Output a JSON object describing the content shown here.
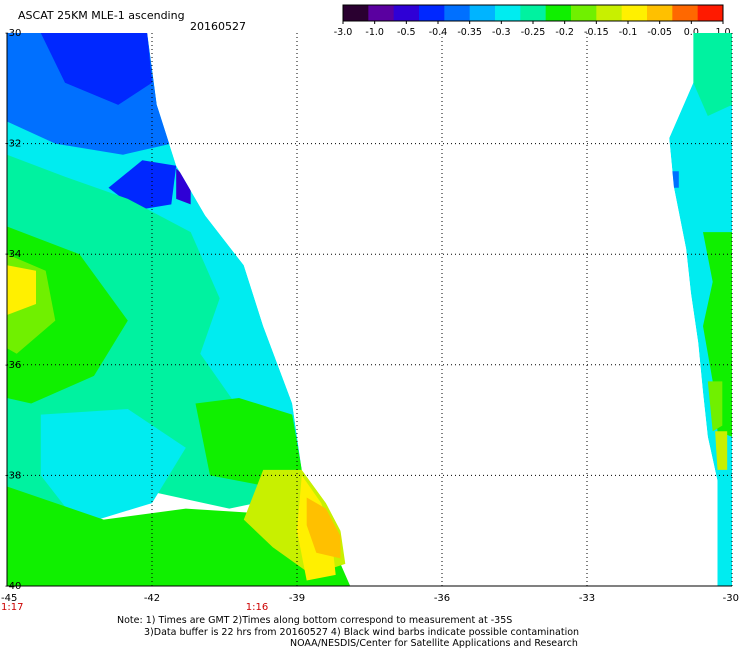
{
  "header": {
    "title": "ASCAT 25KM MLE-1 ascending",
    "date": "20160527"
  },
  "colorbar": {
    "labels": [
      "-3.0",
      "-1.0",
      "-0.5",
      "-0.4",
      "-0.35",
      "-0.3",
      "-0.25",
      "-0.2",
      "-0.15",
      "-0.1",
      "-0.05",
      "0.0",
      "1.0"
    ],
    "colors": [
      "#2a0030",
      "#5a00a0",
      "#2f00d6",
      "#0028ff",
      "#0070ff",
      "#00b4ff",
      "#00ecf0",
      "#00f2a0",
      "#10f000",
      "#70f000",
      "#c8f000",
      "#fff000",
      "#ffc000",
      "#ff6800",
      "#ff1a00"
    ]
  },
  "axes": {
    "lon_labels": [
      "-45",
      "-42",
      "-39",
      "-36",
      "-33",
      "-30"
    ],
    "lat_labels": [
      "-30",
      "-32",
      "-34",
      "-36",
      "-38",
      "-40"
    ],
    "time_labels": [
      {
        "text": "1:17",
        "at": "-45"
      },
      {
        "text": "1:16",
        "at": "-39"
      }
    ],
    "grid": true
  },
  "notes": {
    "line1": "Note: 1) Times are GMT 2)Times along bottom correspond to measurement at -35S",
    "line2": "3)Data buffer is 22 hrs from 20160527 4) Black wind barbs indicate possible contamination",
    "line3": "NOAA/NESDIS/Center for Satellite Applications and Research"
  },
  "map_data": {
    "lon_range": [
      -45,
      -30
    ],
    "lat_range": [
      -30,
      -40
    ],
    "swaths": [
      {
        "name": "west",
        "edge": [
          [
            -45.0,
            -30.0
          ],
          [
            -42.1,
            -30.0
          ],
          [
            -41.9,
            -31.3
          ],
          [
            -41.5,
            -32.4
          ],
          [
            -40.9,
            -33.3
          ],
          [
            -40.1,
            -34.2
          ],
          [
            -39.7,
            -35.3
          ],
          [
            -39.1,
            -36.7
          ],
          [
            -38.9,
            -37.9
          ],
          [
            -38.4,
            -38.5
          ],
          [
            -38.1,
            -39.0
          ],
          [
            -37.9,
            -39.5
          ],
          [
            -37.9,
            -40.0
          ],
          [
            -45.0,
            -40.0
          ]
        ],
        "regions": [
          {
            "color": "#00ecf0",
            "poly": [
              [
                -45,
                -30
              ],
              [
                -42.1,
                -30
              ],
              [
                -41.9,
                -31.3
              ],
              [
                -41.5,
                -32.4
              ],
              [
                -40.9,
                -33.3
              ],
              [
                -40.1,
                -34.2
              ],
              [
                -39.7,
                -35.3
              ],
              [
                -39.1,
                -36.7
              ],
              [
                -38.9,
                -37.9
              ],
              [
                -45,
                -37.9
              ]
            ]
          },
          {
            "color": "#0070ff",
            "poly": [
              [
                -45,
                -30
              ],
              [
                -42.1,
                -30
              ],
              [
                -41.9,
                -31.3
              ],
              [
                -41.6,
                -32.0
              ],
              [
                -42.6,
                -32.2
              ],
              [
                -44.0,
                -32.0
              ],
              [
                -45,
                -31.6
              ]
            ]
          },
          {
            "color": "#0028ff",
            "poly": [
              [
                -44.3,
                -30
              ],
              [
                -42.1,
                -30
              ],
              [
                -42.0,
                -30.9
              ],
              [
                -42.7,
                -31.3
              ],
              [
                -43.8,
                -30.9
              ]
            ]
          },
          {
            "color": "#0028ff",
            "poly": [
              [
                -42.2,
                -32.3
              ],
              [
                -41.5,
                -32.4
              ],
              [
                -41.6,
                -33.1
              ],
              [
                -42.3,
                -33.2
              ],
              [
                -42.9,
                -32.8
              ]
            ]
          },
          {
            "color": "#2f00d6",
            "poly": [
              [
                -41.5,
                -32.45
              ],
              [
                -41.2,
                -32.7
              ],
              [
                -41.2,
                -33.1
              ],
              [
                -41.5,
                -33.0
              ]
            ]
          },
          {
            "color": "#00f2a0",
            "poly": [
              [
                -45,
                -32.2
              ],
              [
                -43.8,
                -32.6
              ],
              [
                -42.5,
                -33.0
              ],
              [
                -41.2,
                -33.6
              ],
              [
                -40.6,
                -34.8
              ],
              [
                -41.0,
                -35.8
              ],
              [
                -40.2,
                -36.8
              ],
              [
                -39.5,
                -37.6
              ],
              [
                -39.3,
                -38.4
              ],
              [
                -40.4,
                -38.6
              ],
              [
                -42.5,
                -38.2
              ],
              [
                -44.0,
                -38.7
              ],
              [
                -45,
                -38.4
              ]
            ]
          },
          {
            "color": "#10f000",
            "poly": [
              [
                -45,
                -33.5
              ],
              [
                -43.5,
                -34.0
              ],
              [
                -42.5,
                -35.2
              ],
              [
                -43.2,
                -36.2
              ],
              [
                -44.5,
                -36.7
              ],
              [
                -45,
                -36.6
              ]
            ]
          },
          {
            "color": "#70f000",
            "poly": [
              [
                -45,
                -34.0
              ],
              [
                -44.2,
                -34.3
              ],
              [
                -44.0,
                -35.2
              ],
              [
                -44.8,
                -35.8
              ],
              [
                -45,
                -35.7
              ]
            ]
          },
          {
            "color": "#fff000",
            "poly": [
              [
                -45,
                -34.2
              ],
              [
                -44.4,
                -34.3
              ],
              [
                -44.4,
                -34.9
              ],
              [
                -45,
                -35.1
              ]
            ]
          },
          {
            "color": "#10f000",
            "poly": [
              [
                -41.1,
                -36.7
              ],
              [
                -40.2,
                -36.6
              ],
              [
                -39.1,
                -36.9
              ],
              [
                -38.9,
                -37.9
              ],
              [
                -39.6,
                -38.2
              ],
              [
                -40.8,
                -38.0
              ]
            ]
          },
          {
            "color": "#00ecf0",
            "poly": [
              [
                -44.3,
                -36.9
              ],
              [
                -42.5,
                -36.8
              ],
              [
                -41.3,
                -37.5
              ],
              [
                -42.0,
                -38.5
              ],
              [
                -43.5,
                -38.9
              ],
              [
                -44.3,
                -38.0
              ]
            ]
          },
          {
            "color": "#10f000",
            "poly": [
              [
                -45,
                -38.2
              ],
              [
                -43.0,
                -38.8
              ],
              [
                -41.3,
                -38.6
              ],
              [
                -39.5,
                -38.7
              ],
              [
                -38.6,
                -39.0
              ],
              [
                -38.1,
                -39.6
              ],
              [
                -37.9,
                -40
              ],
              [
                -45,
                -40
              ]
            ]
          },
          {
            "color": "#c8f000",
            "poly": [
              [
                -39.7,
                -37.9
              ],
              [
                -38.9,
                -37.9
              ],
              [
                -38.4,
                -38.5
              ],
              [
                -38.1,
                -39.0
              ],
              [
                -38.0,
                -39.6
              ],
              [
                -38.7,
                -39.8
              ],
              [
                -39.5,
                -39.3
              ],
              [
                -40.1,
                -38.8
              ]
            ]
          },
          {
            "color": "#fff000",
            "poly": [
              [
                -38.9,
                -38.0
              ],
              [
                -38.5,
                -38.5
              ],
              [
                -38.3,
                -39.0
              ],
              [
                -38.2,
                -39.8
              ],
              [
                -38.8,
                -39.9
              ],
              [
                -39.0,
                -39.0
              ]
            ]
          },
          {
            "color": "#ffc000",
            "poly": [
              [
                -38.8,
                -38.4
              ],
              [
                -38.4,
                -38.6
              ],
              [
                -38.1,
                -39.1
              ],
              [
                -38.1,
                -39.5
              ],
              [
                -38.6,
                -39.4
              ],
              [
                -38.8,
                -38.9
              ]
            ]
          }
        ]
      },
      {
        "name": "east",
        "edge": [
          [
            -30.8,
            -30.0
          ],
          [
            -30.0,
            -30.0
          ],
          [
            -30.0,
            -40.0
          ],
          [
            -30.3,
            -40.0
          ],
          [
            -30.3,
            -38.1
          ],
          [
            -30.5,
            -37.3
          ],
          [
            -30.6,
            -36.5
          ],
          [
            -30.7,
            -35.6
          ],
          [
            -30.85,
            -34.7
          ],
          [
            -30.95,
            -33.9
          ],
          [
            -31.2,
            -32.8
          ],
          [
            -31.3,
            -31.9
          ],
          [
            -30.8,
            -30.9
          ]
        ],
        "regions": [
          {
            "color": "#00ecf0",
            "poly": [
              [
                -30.8,
                -30
              ],
              [
                -30,
                -30
              ],
              [
                -30,
                -40
              ],
              [
                -30.3,
                -40
              ],
              [
                -30.3,
                -38.1
              ],
              [
                -30.5,
                -37.3
              ],
              [
                -30.6,
                -36.5
              ],
              [
                -30.7,
                -35.6
              ],
              [
                -30.85,
                -34.7
              ],
              [
                -30.95,
                -33.9
              ],
              [
                -31.2,
                -32.8
              ],
              [
                -31.3,
                -31.9
              ],
              [
                -30.8,
                -30.9
              ]
            ]
          },
          {
            "color": "#00f2a0",
            "poly": [
              [
                -30.8,
                -30
              ],
              [
                -30.0,
                -30
              ],
              [
                -30.0,
                -31.3
              ],
              [
                -30.5,
                -31.5
              ],
              [
                -30.8,
                -30.9
              ]
            ]
          },
          {
            "color": "#0070ff",
            "poly": [
              [
                -31.3,
                -32.5
              ],
              [
                -31.1,
                -32.5
              ],
              [
                -31.1,
                -32.8
              ],
              [
                -31.3,
                -32.8
              ]
            ]
          },
          {
            "color": "#10f000",
            "poly": [
              [
                -30.6,
                -33.6
              ],
              [
                -30.0,
                -33.6
              ],
              [
                -30.0,
                -37.3
              ],
              [
                -30.3,
                -37.2
              ],
              [
                -30.4,
                -36.3
              ],
              [
                -30.6,
                -35.3
              ],
              [
                -30.4,
                -34.5
              ]
            ]
          },
          {
            "color": "#70f000",
            "poly": [
              [
                -30.5,
                -36.3
              ],
              [
                -30.2,
                -36.3
              ],
              [
                -30.2,
                -37.1
              ],
              [
                -30.4,
                -37.2
              ]
            ]
          },
          {
            "color": "#c8f000",
            "poly": [
              [
                -30.35,
                -37.2
              ],
              [
                -30.1,
                -37.2
              ],
              [
                -30.1,
                -37.9
              ],
              [
                -30.3,
                -37.9
              ]
            ]
          }
        ]
      }
    ]
  }
}
